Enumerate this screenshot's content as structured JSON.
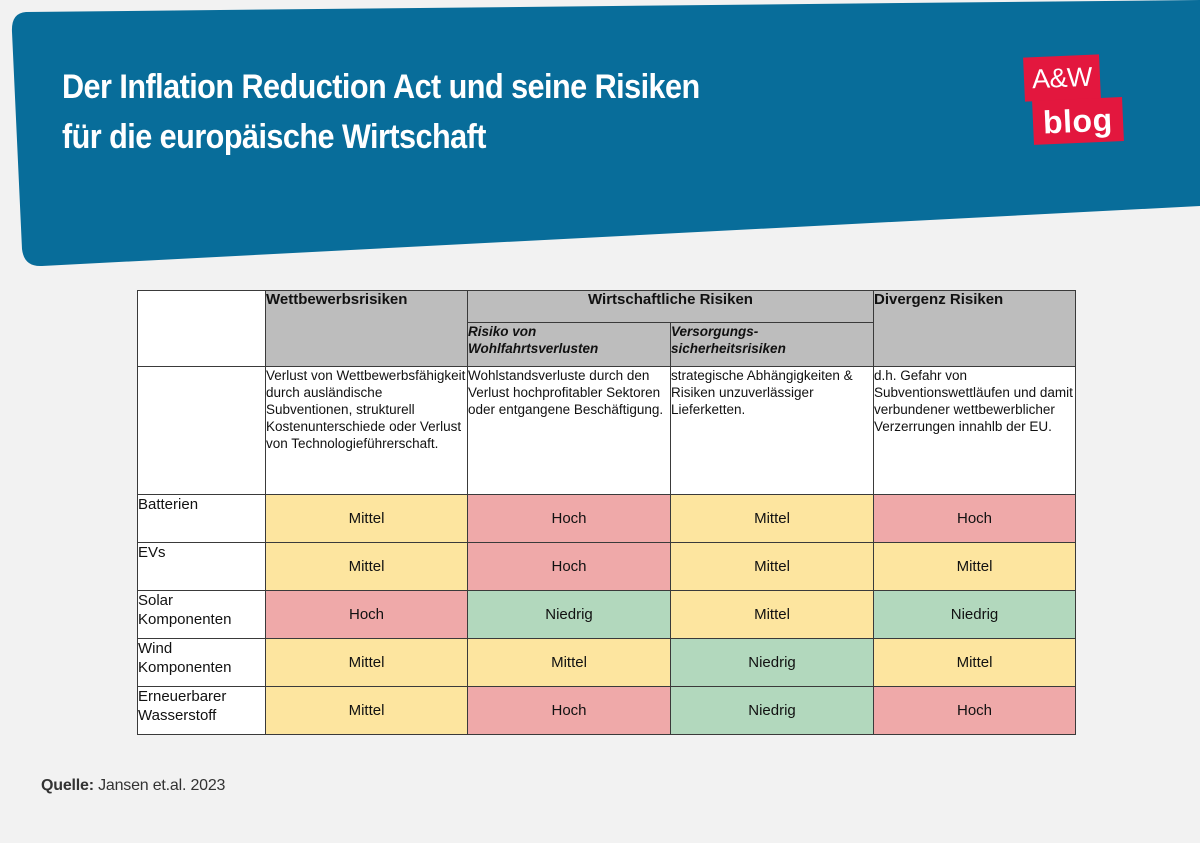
{
  "header": {
    "title_line1": "Der Inflation Reduction Act und seine Risiken",
    "title_line2": "für die europäische Wirtschaft",
    "logo_top": "A&W",
    "logo_bottom": "blog"
  },
  "colors": {
    "banner": "#086d9a",
    "logo": "#e3173e",
    "hoch": "#efa9a9",
    "mittel": "#fde59f",
    "niedrig": "#b2d8bd",
    "header_gray": "#bdbdbd"
  },
  "table": {
    "headers": {
      "wettbewerb": "Wettbewerbsrisiken",
      "wirtschaft": "Wirtschaftliche Risiken",
      "wirtschaft_sub1": "Risiko von Wohlfahrtsverlusten",
      "wirtschaft_sub2": "Versorgungs-sicherheitsrisiken",
      "divergenz": "Divergenz Risiken"
    },
    "descriptions": {
      "wettbewerb": "Verlust von Wettbewerbsfähigkeit durch ausländische Subventionen, strukturell Kostenunterschiede oder Verlust von Technologieführerschaft.",
      "wohlfahrt": "Wohlstandsverluste durch den Verlust hochprofitabler Sektoren oder entgangene Beschäftigung.",
      "versorgung": "strategische Abhängigkeiten & Risiken unzuverlässiger Lieferketten.",
      "divergenz": "d.h. Gefahr von Subventionswettläufen und damit verbundener wettbewerblicher Verzerrungen innahlb der EU."
    },
    "rows": [
      {
        "label": "Batterien",
        "values": [
          "Mittel",
          "Hoch",
          "Mittel",
          "Hoch"
        ]
      },
      {
        "label": "EVs",
        "values": [
          "Mittel",
          "Hoch",
          "Mittel",
          "Mittel"
        ]
      },
      {
        "label": "Solar Komponenten",
        "values": [
          "Hoch",
          "Niedrig",
          "Mittel",
          "Niedrig"
        ]
      },
      {
        "label": "Wind Komponenten",
        "values": [
          "Mittel",
          "Mittel",
          "Niedrig",
          "Mittel"
        ]
      },
      {
        "label": "Erneuerbarer Wasserstoff",
        "values": [
          "Mittel",
          "Hoch",
          "Niedrig",
          "Hoch"
        ]
      }
    ]
  },
  "source": {
    "label": "Quelle:",
    "text": "Jansen et.al. 2023"
  }
}
